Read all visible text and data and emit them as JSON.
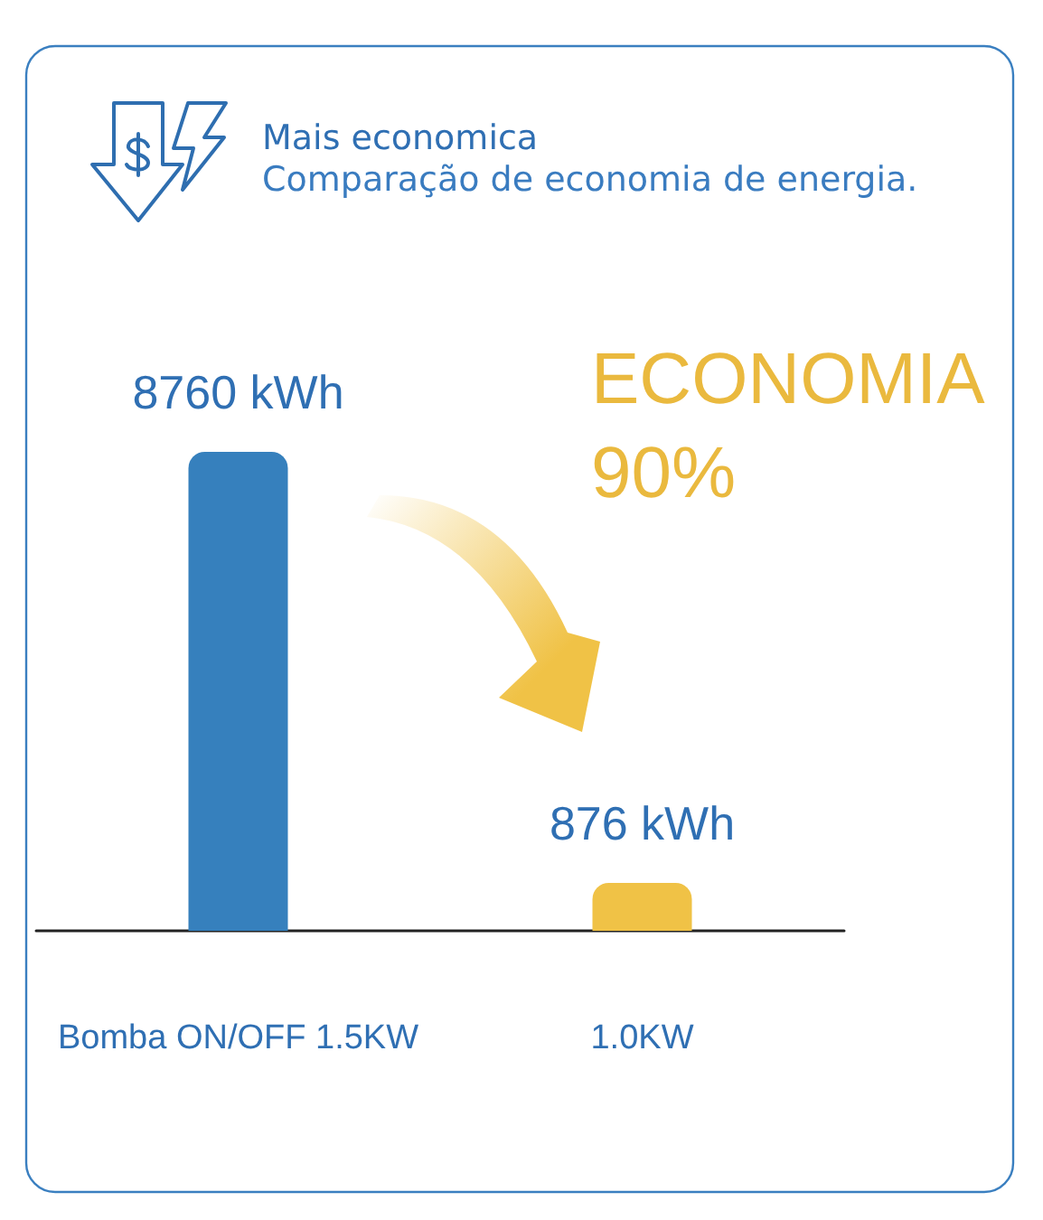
{
  "chart_data": {
    "type": "bar",
    "title": "Mais economica",
    "subtitle": "Comparação de economia de energia.",
    "categories": [
      "Bomba ON/OFF 1.5KW",
      "1.0KW"
    ],
    "values": [
      8760,
      876
    ],
    "colors": [
      "#3680bd",
      "#f0c246"
    ],
    "value_labels": [
      "8760 kWh",
      "876 kWh"
    ],
    "annotations": [
      "ECONOMIA",
      "90%"
    ]
  }
}
